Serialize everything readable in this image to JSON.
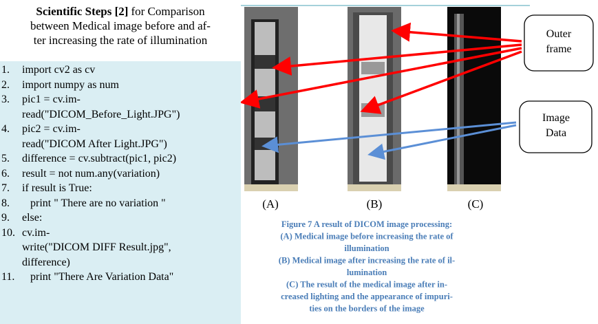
{
  "title": {
    "bold": "Scientific Steps [2]",
    "lines": [
      "for Comparison",
      "between Medical image before and af-",
      "ter increasing the rate of illumination"
    ]
  },
  "code": [
    {
      "num": "1.",
      "lines": [
        "import cv2 as cv"
      ]
    },
    {
      "num": "2.",
      "lines": [
        "import numpy as num"
      ]
    },
    {
      "num": "3.",
      "lines": [
        "pic1 = cv.im-",
        "read(\"DICOM_Before_Light.JPG\")"
      ]
    },
    {
      "num": "4.",
      "lines": [
        "pic2 = cv.im-",
        "read(\"DICOM After Light.JPG\")"
      ]
    },
    {
      "num": "5.",
      "lines": [
        "difference = cv.subtract(pic1, pic2)"
      ]
    },
    {
      "num": "6.",
      "lines": [
        "result = not num.any(variation)"
      ]
    },
    {
      "num": "7.",
      "lines": [
        "if result is True:"
      ]
    },
    {
      "num": "8.",
      "lines": [
        "   print \" There are no variation \""
      ]
    },
    {
      "num": "9.",
      "lines": [
        "else:"
      ]
    },
    {
      "num": "10.",
      "lines": [
        "cv.im-",
        "write(\"DICOM DIFF Result.jpg\",",
        "difference)"
      ]
    },
    {
      "num": "11.",
      "lines": [
        "   print \"There Are Variation Data\""
      ]
    }
  ],
  "panels": [
    "(A)",
    "(B)",
    "(C)"
  ],
  "caption": [
    "Figure 7 A result of DICOM image processing:",
    "(A) Medical image before increasing the rate of",
    "illumination",
    "(B) Medical image after increasing the rate of il-",
    "lumination",
    "(C) The result of the medical image after in-",
    "creased lighting and the appearance of impuri-",
    "ties on the borders of the image"
  ],
  "callouts": [
    [
      "Outer",
      "frame"
    ],
    [
      "Image",
      "Data"
    ]
  ]
}
